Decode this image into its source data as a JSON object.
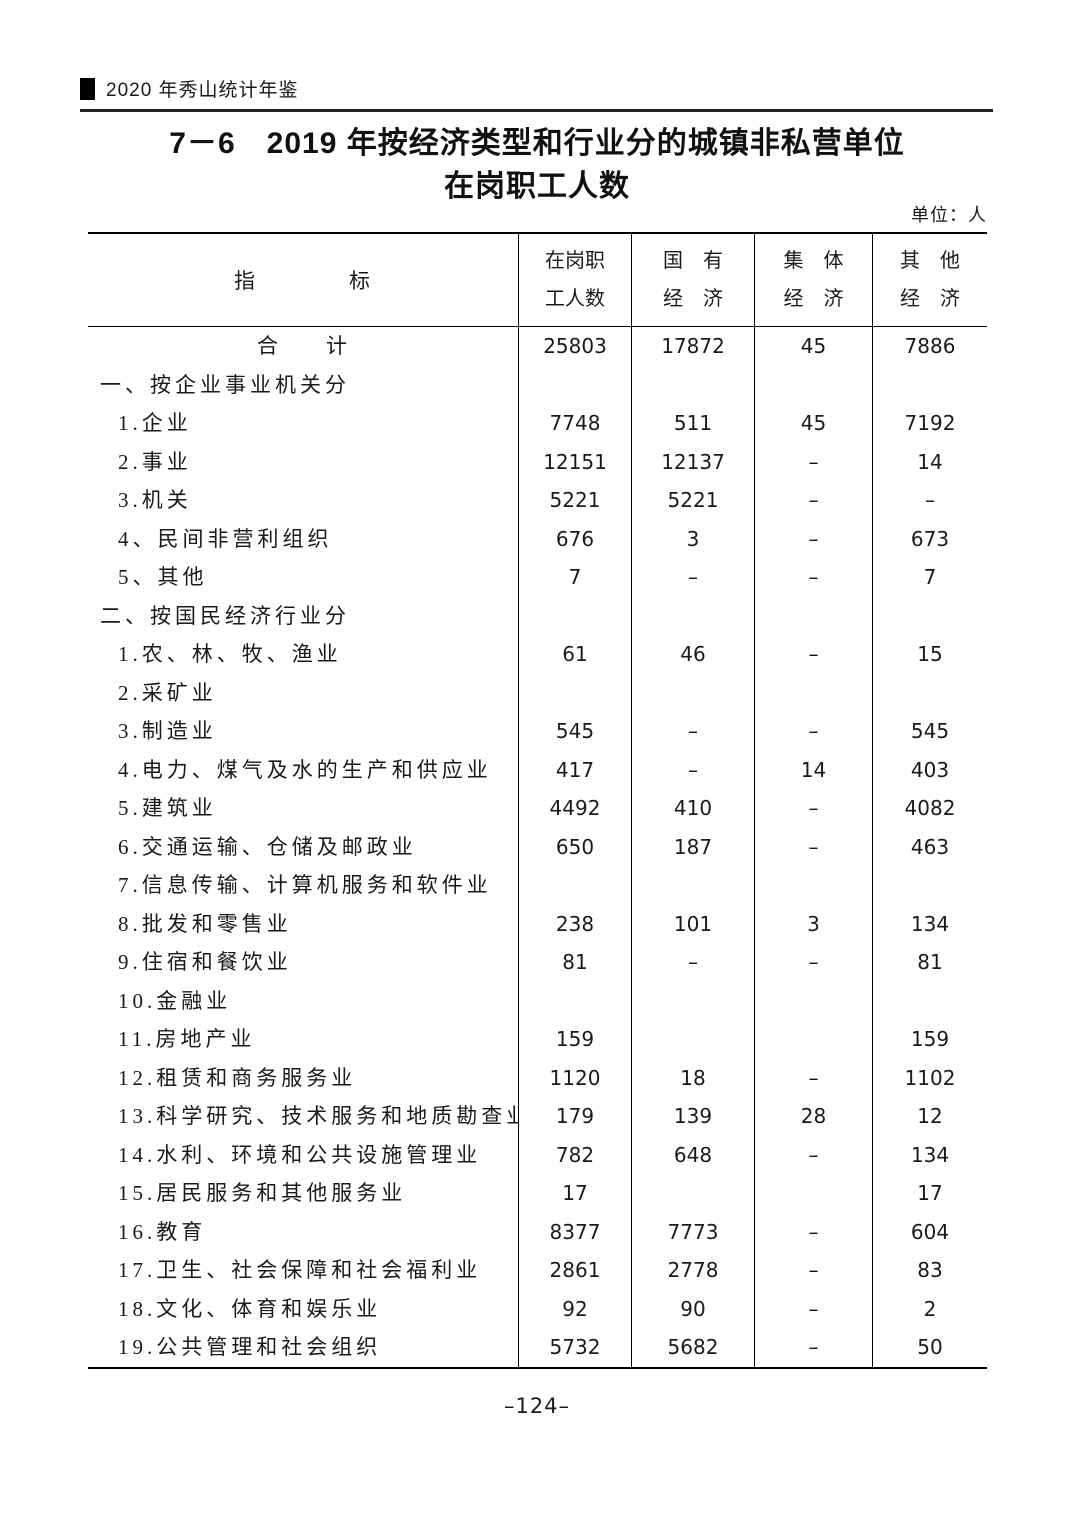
{
  "header": {
    "yearbook_title": "2020 年秀山统计年鉴"
  },
  "title": {
    "line1": "7－6　2019 年按经济类型和行业分的城镇非私营单位",
    "line2": "在岗职工人数"
  },
  "unit_note": "单位：人",
  "footer": {
    "page_number": "–124–"
  },
  "table": {
    "header": {
      "indicator": "指　　　　标",
      "cols": [
        {
          "line1": "在岗职",
          "line2": "工人数"
        },
        {
          "line1": "国　有",
          "line2": "经　济"
        },
        {
          "line1": "集　体",
          "line2": "经　济"
        },
        {
          "line1": "其　他",
          "line2": "经　济"
        }
      ]
    },
    "rows": [
      {
        "indicator": "合　　计",
        "style": "total",
        "values": [
          "25803",
          "17872",
          "45",
          "7886"
        ]
      },
      {
        "indicator": "一、按企业事业机关分",
        "style": "section",
        "values": [
          "",
          "",
          "",
          ""
        ]
      },
      {
        "indicator": "1.企业",
        "style": "item",
        "values": [
          "7748",
          "511",
          "45",
          "7192"
        ]
      },
      {
        "indicator": "2.事业",
        "style": "item",
        "values": [
          "12151",
          "12137",
          "–",
          "14"
        ]
      },
      {
        "indicator": "3.机关",
        "style": "item",
        "values": [
          "5221",
          "5221",
          "–",
          "–"
        ]
      },
      {
        "indicator": "4、民间非营利组织",
        "style": "item",
        "values": [
          "676",
          "3",
          "–",
          "673"
        ]
      },
      {
        "indicator": "5、其他",
        "style": "item",
        "values": [
          "7",
          "–",
          "–",
          "7"
        ]
      },
      {
        "indicator": "二、按国民经济行业分",
        "style": "section",
        "values": [
          "",
          "",
          "",
          ""
        ]
      },
      {
        "indicator": "1.农、林、牧、渔业",
        "style": "item",
        "values": [
          "61",
          "46",
          "–",
          "15"
        ]
      },
      {
        "indicator": "2.采矿业",
        "style": "item",
        "values": [
          "",
          "",
          "",
          ""
        ]
      },
      {
        "indicator": "3.制造业",
        "style": "item",
        "values": [
          "545",
          "–",
          "–",
          "545"
        ]
      },
      {
        "indicator": "4.电力、煤气及水的生产和供应业",
        "style": "item",
        "values": [
          "417",
          "–",
          "14",
          "403"
        ]
      },
      {
        "indicator": "5.建筑业",
        "style": "item",
        "values": [
          "4492",
          "410",
          "–",
          "4082"
        ]
      },
      {
        "indicator": "6.交通运输、仓储及邮政业",
        "style": "item",
        "values": [
          "650",
          "187",
          "–",
          "463"
        ]
      },
      {
        "indicator": "7.信息传输、计算机服务和软件业",
        "style": "item",
        "values": [
          "",
          "",
          "",
          ""
        ]
      },
      {
        "indicator": "8.批发和零售业",
        "style": "item",
        "values": [
          "238",
          "101",
          "3",
          "134"
        ]
      },
      {
        "indicator": "9.住宿和餐饮业",
        "style": "item",
        "values": [
          "81",
          "–",
          "–",
          "81"
        ]
      },
      {
        "indicator": "10.金融业",
        "style": "item",
        "values": [
          "",
          "",
          "",
          ""
        ]
      },
      {
        "indicator": "11.房地产业",
        "style": "item",
        "values": [
          "159",
          "",
          "",
          "159"
        ]
      },
      {
        "indicator": "12.租赁和商务服务业",
        "style": "item",
        "values": [
          "1120",
          "18",
          "–",
          "1102"
        ]
      },
      {
        "indicator": "13.科学研究、技术服务和地质勘查业",
        "style": "item",
        "values": [
          "179",
          "139",
          "28",
          "12"
        ]
      },
      {
        "indicator": "14.水利、环境和公共设施管理业",
        "style": "item",
        "values": [
          "782",
          "648",
          "–",
          "134"
        ]
      },
      {
        "indicator": "15.居民服务和其他服务业",
        "style": "item",
        "values": [
          "17",
          "",
          "",
          "17"
        ]
      },
      {
        "indicator": "16.教育",
        "style": "item",
        "values": [
          "8377",
          "7773",
          "–",
          "604"
        ]
      },
      {
        "indicator": "17.卫生、社会保障和社会福利业",
        "style": "item",
        "values": [
          "2861",
          "2778",
          "–",
          "83"
        ]
      },
      {
        "indicator": "18.文化、体育和娱乐业",
        "style": "item",
        "values": [
          "92",
          "90",
          "–",
          "2"
        ]
      },
      {
        "indicator": "19.公共管理和社会组织",
        "style": "item",
        "values": [
          "5732",
          "5682",
          "–",
          "50"
        ]
      }
    ]
  }
}
